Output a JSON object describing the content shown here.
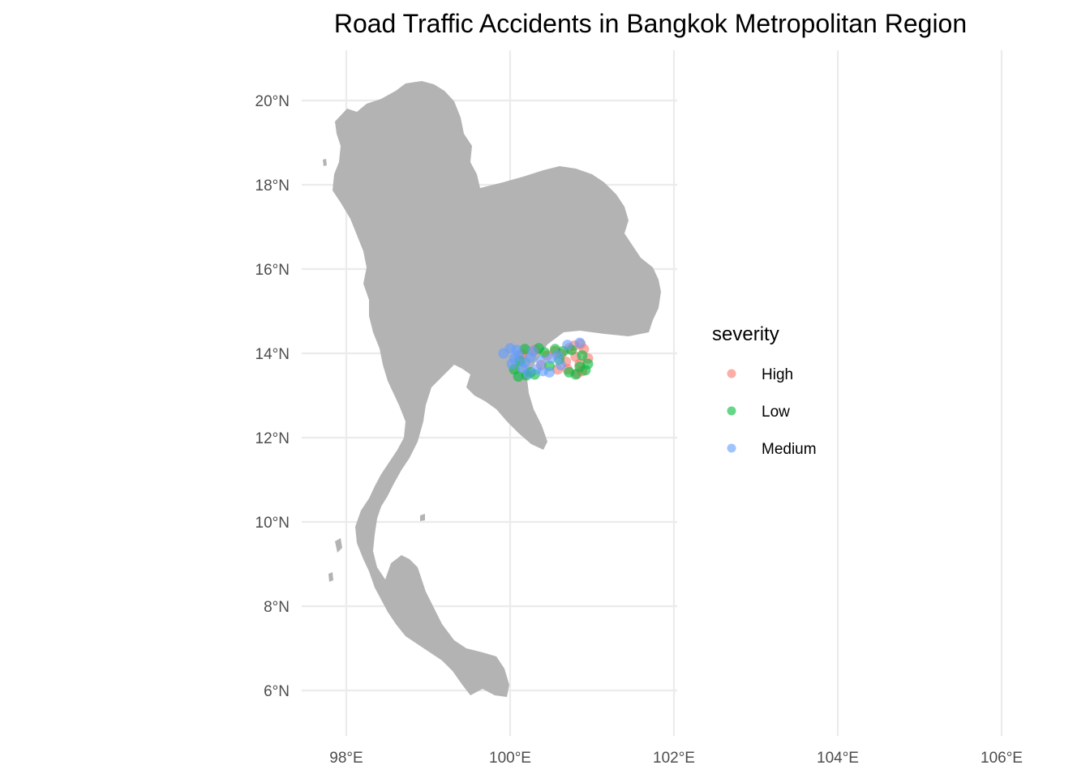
{
  "chart_data": {
    "type": "scatter",
    "title": "Road Traffic Accidents in Bangkok Metropolitan Region",
    "base_map": "Thailand",
    "base_map_color": "#b3b3b3",
    "grid": true,
    "x_range": [
      97,
      106
    ],
    "y_range": [
      5,
      21
    ],
    "x_ticks": [
      {
        "value": 98,
        "label": "98°E"
      },
      {
        "value": 100,
        "label": "100°E"
      },
      {
        "value": 102,
        "label": "102°E"
      },
      {
        "value": 104,
        "label": "104°E"
      },
      {
        "value": 106,
        "label": "106°E"
      }
    ],
    "y_ticks": [
      {
        "value": 6,
        "label": "6°N"
      },
      {
        "value": 8,
        "label": "8°N"
      },
      {
        "value": 10,
        "label": "10°N"
      },
      {
        "value": 12,
        "label": "12°N"
      },
      {
        "value": 14,
        "label": "14°N"
      },
      {
        "value": 16,
        "label": "16°N"
      },
      {
        "value": 18,
        "label": "18°N"
      },
      {
        "value": 20,
        "label": "20°N"
      }
    ],
    "legend": {
      "title": "severity",
      "placement": "right",
      "entries": [
        {
          "label": "High",
          "color": "#f8766d"
        },
        {
          "label": "Low",
          "color": "#00ba38"
        },
        {
          "label": "Medium",
          "color": "#619cff"
        }
      ]
    },
    "series": [
      {
        "name": "High",
        "color": "#f8766d",
        "points": [
          [
            100.78,
            14.18
          ],
          [
            100.86,
            14.22
          ],
          [
            100.72,
            14.12
          ],
          [
            100.55,
            14.05
          ],
          [
            100.62,
            13.98
          ],
          [
            100.8,
            13.92
          ],
          [
            100.85,
            13.75
          ],
          [
            100.7,
            13.62
          ],
          [
            100.88,
            13.58
          ],
          [
            100.58,
            13.62
          ],
          [
            100.45,
            13.95
          ],
          [
            100.3,
            14.08
          ],
          [
            100.68,
            13.8
          ],
          [
            100.9,
            14.1
          ],
          [
            100.38,
            13.72
          ],
          [
            100.15,
            13.98
          ],
          [
            100.82,
            13.52
          ],
          [
            100.95,
            13.88
          ]
        ]
      },
      {
        "name": "Low",
        "color": "#00ba38",
        "points": [
          [
            100.2,
            13.48
          ],
          [
            100.1,
            13.45
          ],
          [
            100.3,
            13.5
          ],
          [
            100.25,
            13.55
          ],
          [
            100.05,
            13.62
          ],
          [
            100.55,
            14.1
          ],
          [
            100.65,
            14.05
          ],
          [
            100.88,
            13.95
          ],
          [
            100.92,
            13.6
          ],
          [
            100.72,
            13.55
          ],
          [
            100.8,
            13.5
          ],
          [
            100.35,
            14.12
          ],
          [
            100.48,
            13.7
          ],
          [
            100.6,
            13.85
          ],
          [
            100.95,
            13.75
          ],
          [
            100.42,
            14.02
          ],
          [
            100.18,
            14.1
          ],
          [
            100.85,
            13.68
          ],
          [
            100.75,
            14.08
          ],
          [
            100.12,
            13.82
          ]
        ]
      },
      {
        "name": "Medium",
        "color": "#619cff",
        "points": [
          [
            99.92,
            14.0
          ],
          [
            100.0,
            14.12
          ],
          [
            100.1,
            13.95
          ],
          [
            100.05,
            13.88
          ],
          [
            100.18,
            13.78
          ],
          [
            100.25,
            13.9
          ],
          [
            100.32,
            13.62
          ],
          [
            100.4,
            13.58
          ],
          [
            100.28,
            14.05
          ],
          [
            100.15,
            13.65
          ],
          [
            100.5,
            13.88
          ],
          [
            100.62,
            13.72
          ],
          [
            100.7,
            14.2
          ],
          [
            100.85,
            14.25
          ],
          [
            100.48,
            13.55
          ],
          [
            100.22,
            13.52
          ],
          [
            100.58,
            13.95
          ],
          [
            100.08,
            14.08
          ],
          [
            100.38,
            13.82
          ],
          [
            100.02,
            13.75
          ]
        ]
      }
    ]
  }
}
